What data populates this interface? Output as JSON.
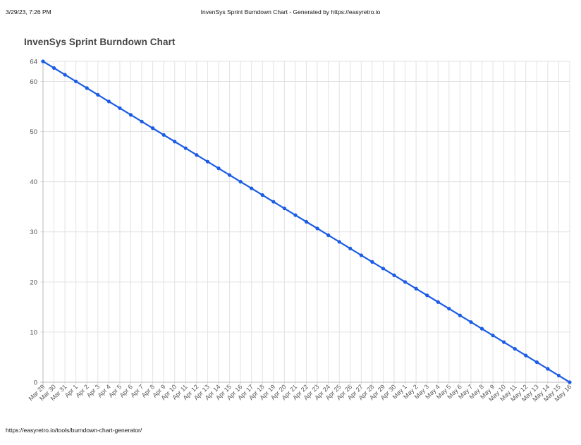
{
  "print_header": {
    "date": "3/29/23, 7:26 PM",
    "title": "InvenSys Sprint Burndown Chart - Generated by https://easyretro.io"
  },
  "print_footer": {
    "url": "https://easyretro.io/tools/burndown-chart-generator/"
  },
  "colors": {
    "line": "#1a5ce5",
    "grid": "#e2e2e2",
    "axis": "#b8b8b8",
    "tick_text": "#555555"
  },
  "chart_data": {
    "type": "line",
    "title": "InvenSys Sprint Burndown Chart",
    "xlabel": "",
    "ylabel": "",
    "ylim": [
      0,
      64
    ],
    "y_ticks": [
      0,
      10,
      20,
      30,
      40,
      50,
      60,
      64
    ],
    "grid": true,
    "legend": "none",
    "categories": [
      "Mar 29",
      "Mar 30",
      "Mar 31",
      "Apr 1",
      "Apr 2",
      "Apr 3",
      "Apr 4",
      "Apr 5",
      "Apr 6",
      "Apr 7",
      "Apr 8",
      "Apr 9",
      "Apr 10",
      "Apr 11",
      "Apr 12",
      "Apr 13",
      "Apr 14",
      "Apr 15",
      "Apr 16",
      "Apr 17",
      "Apr 18",
      "Apr 19",
      "Apr 20",
      "Apr 21",
      "Apr 22",
      "Apr 23",
      "Apr 24",
      "Apr 25",
      "Apr 26",
      "Apr 27",
      "Apr 28",
      "Apr 29",
      "Apr 30",
      "May 1",
      "May 2",
      "May 3",
      "May 4",
      "May 5",
      "May 6",
      "May 7",
      "May 8",
      "May 9",
      "May 10",
      "May 11",
      "May 12",
      "May 13",
      "May 14",
      "May 15",
      "May 16"
    ],
    "series": [
      {
        "values": [
          64,
          62.67,
          61.33,
          60,
          58.67,
          57.33,
          56,
          54.67,
          53.33,
          52,
          50.67,
          49.33,
          48,
          46.67,
          45.33,
          44,
          42.67,
          41.33,
          40,
          38.67,
          37.33,
          36,
          34.67,
          33.33,
          32,
          30.67,
          29.33,
          28,
          26.67,
          25.33,
          24,
          22.67,
          21.33,
          20,
          18.67,
          17.33,
          16,
          14.67,
          13.33,
          12,
          10.67,
          9.33,
          8,
          6.67,
          5.33,
          4,
          2.67,
          1.33,
          0
        ]
      }
    ]
  }
}
